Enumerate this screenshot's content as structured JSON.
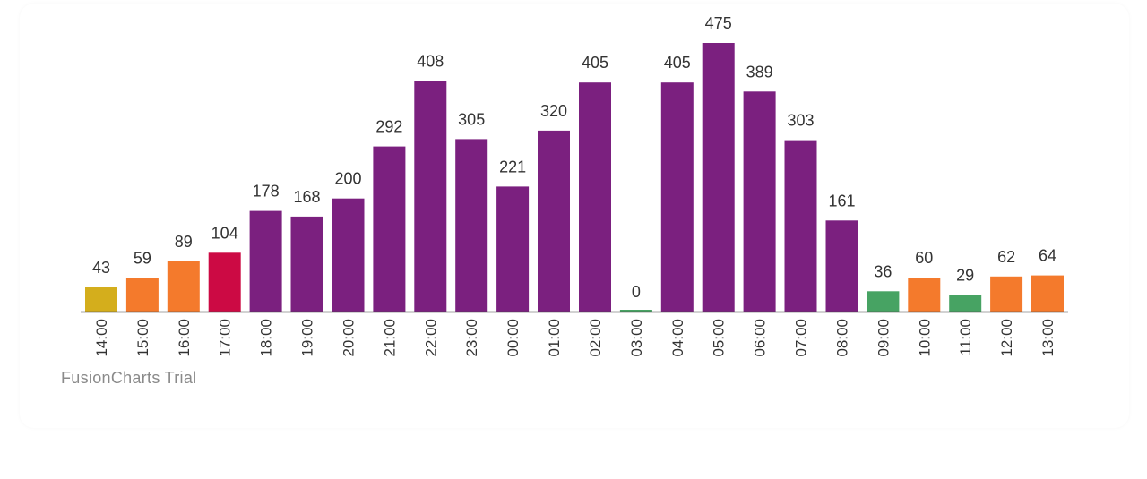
{
  "chart_data": {
    "type": "bar",
    "title": "",
    "xlabel": "",
    "ylabel": "",
    "ylim": [
      0,
      475
    ],
    "grid": false,
    "categories": [
      "14:00",
      "15:00",
      "16:00",
      "17:00",
      "18:00",
      "19:00",
      "20:00",
      "21:00",
      "22:00",
      "23:00",
      "00:00",
      "01:00",
      "02:00",
      "03:00",
      "04:00",
      "05:00",
      "06:00",
      "07:00",
      "08:00",
      "09:00",
      "10:00",
      "11:00",
      "12:00",
      "13:00"
    ],
    "values": [
      43,
      59,
      89,
      104,
      178,
      168,
      200,
      292,
      408,
      305,
      221,
      320,
      405,
      0,
      405,
      475,
      389,
      303,
      161,
      36,
      60,
      29,
      62,
      64
    ],
    "colors": [
      "#d4ae1c",
      "#f47a2c",
      "#f47a2c",
      "#cc0a44",
      "#7b207f",
      "#7b207f",
      "#7b207f",
      "#7b207f",
      "#7b207f",
      "#7b207f",
      "#7b207f",
      "#7b207f",
      "#7b207f",
      "#47a363",
      "#7b207f",
      "#7b207f",
      "#7b207f",
      "#7b207f",
      "#7b207f",
      "#47a363",
      "#f47a2c",
      "#47a363",
      "#f47a2c",
      "#f47a2c"
    ],
    "axis_color": "#4a4a4a"
  },
  "watermark": "FusionCharts Trial"
}
